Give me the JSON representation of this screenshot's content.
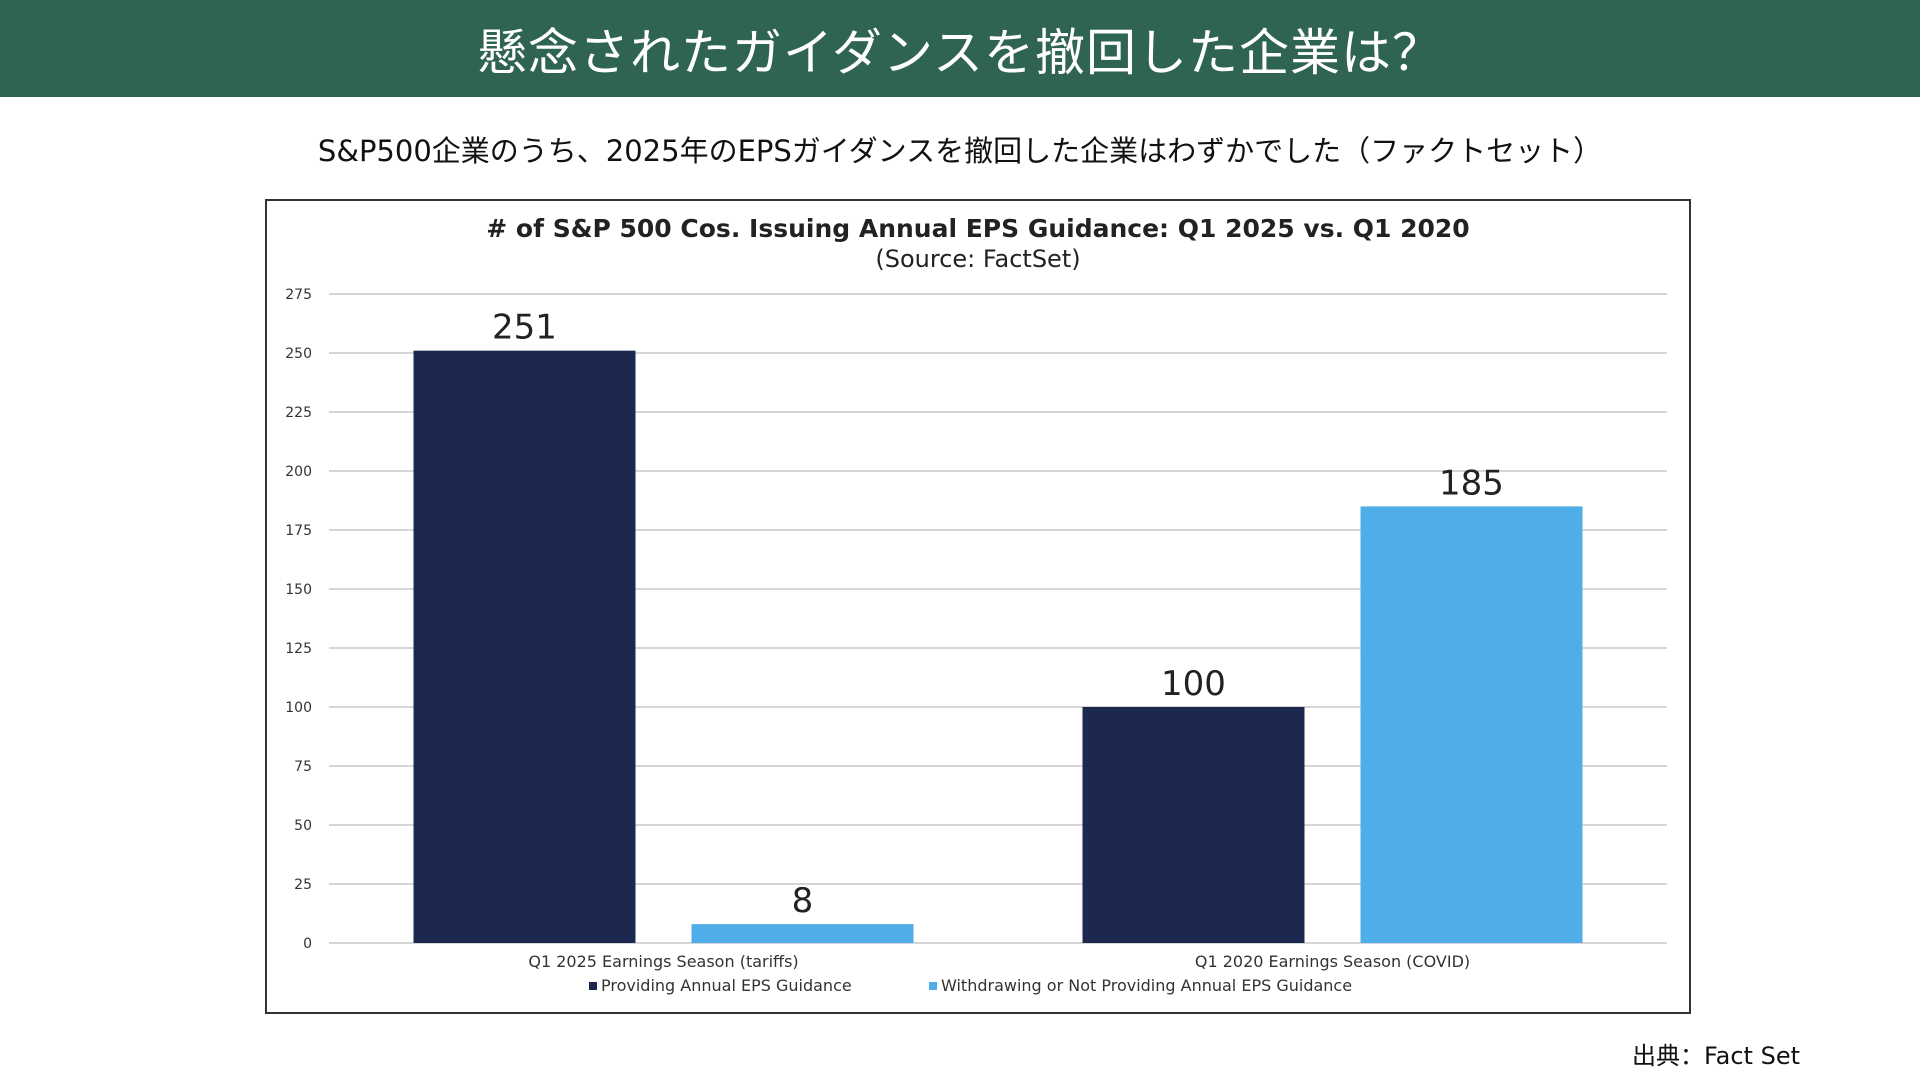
{
  "banner": {
    "title": "懸念されたガイダンスを撤回した企業は？"
  },
  "subtitle": "S&P500企業のうち、2025年のEPSガイダンスを撤回した企業はわずかでした（ファクトセット）",
  "source_note": "出典：Fact Set",
  "colors": {
    "banner": "#2f6352",
    "series_dark": "#1c2850",
    "series_light": "#4faee8",
    "grid": "#c8c8c8"
  },
  "chart_data": {
    "type": "bar",
    "title": "# of S&P 500 Cos. Issuing Annual EPS Guidance: Q1 2025 vs. Q1 2020",
    "subtitle": "(Source: FactSet)",
    "categories": [
      "Q1 2025 Earnings Season (tariffs)",
      "Q1 2020 Earnings Season (COVID)"
    ],
    "series": [
      {
        "name": "Providing Annual EPS Guidance",
        "values": [
          251,
          100
        ],
        "color": "#1c2850"
      },
      {
        "name": "Withdrawing or Not Providing Annual EPS Guidance",
        "values": [
          8,
          185
        ],
        "color": "#4faee8"
      }
    ],
    "ylim": [
      0,
      275
    ],
    "yticks": [
      0,
      25,
      50,
      75,
      100,
      125,
      150,
      175,
      200,
      225,
      250,
      275
    ],
    "grid": true,
    "legend_position": "bottom"
  }
}
